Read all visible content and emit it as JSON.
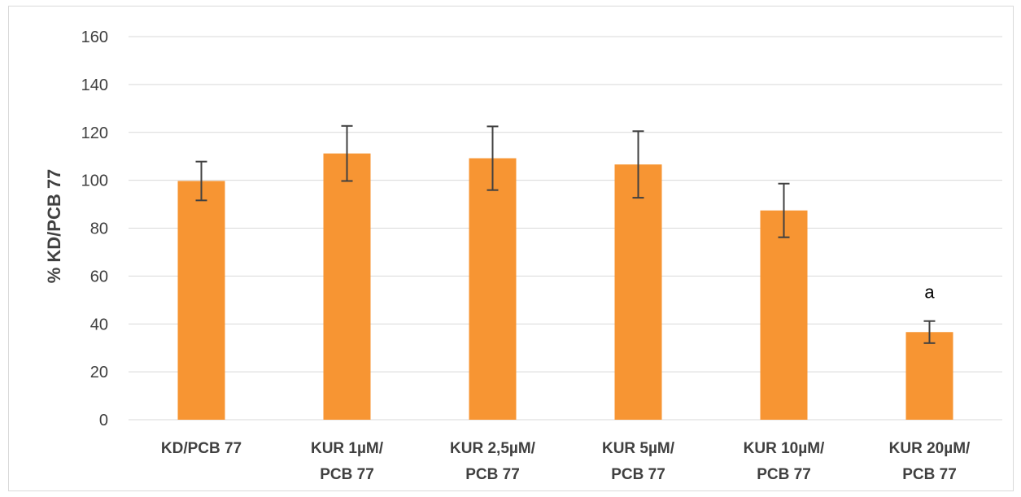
{
  "chart_data": {
    "type": "bar",
    "categories": [
      [
        "KD/PCB 77"
      ],
      [
        "KUR 1µM/",
        "PCB 77"
      ],
      [
        "KUR 2,5µM/",
        "PCB 77"
      ],
      [
        "KUR 5µM/",
        "PCB 77"
      ],
      [
        "KUR 10µM/",
        "PCB 77"
      ],
      [
        "KUR 20µM/",
        "PCB 77"
      ]
    ],
    "values": [
      99.7,
      111.2,
      109.2,
      106.6,
      87.4,
      36.6
    ],
    "errors": [
      8.1,
      11.5,
      13.3,
      13.9,
      11.2,
      4.6
    ],
    "annotations": [
      "",
      "",
      "",
      "",
      "",
      "a"
    ],
    "title": "",
    "xlabel": "",
    "ylabel": "% KD/PCB 77",
    "ylim": [
      0,
      160
    ],
    "yticks": [
      0,
      20,
      40,
      60,
      80,
      100,
      120,
      140,
      160
    ],
    "grid": true,
    "legend": "none",
    "colors": {
      "bar": "#F79533",
      "grid": "#d9d9d9",
      "error": "#404040"
    }
  }
}
